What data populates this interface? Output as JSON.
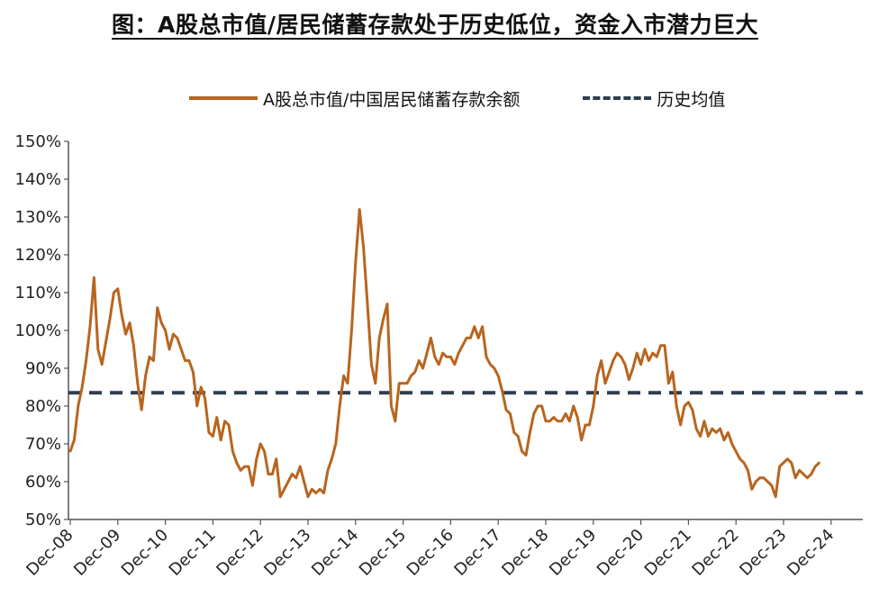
{
  "title": "图：A股总市值/居民储蓄存款处于历史低位，资金入市潜力巨大",
  "colors": {
    "series": "#b8651e",
    "mean": "#2c3e50",
    "axis": "#555555"
  },
  "chart_data": {
    "type": "line",
    "title": "图：A股总市值/居民储蓄存款处于历史低位，资金入市潜力巨大",
    "xlabel": "",
    "ylabel": "",
    "ylim": [
      50,
      150
    ],
    "y_ticks": [
      "50%",
      "60%",
      "70%",
      "80%",
      "90%",
      "100%",
      "110%",
      "120%",
      "130%",
      "140%",
      "150%"
    ],
    "x_ticks": [
      "Dec-08",
      "Dec-09",
      "Dec-10",
      "Dec-11",
      "Dec-12",
      "Dec-13",
      "Dec-14",
      "Dec-15",
      "Dec-16",
      "Dec-17",
      "Dec-18",
      "Dec-19",
      "Dec-20",
      "Dec-21",
      "Dec-22",
      "Dec-23",
      "Dec-24"
    ],
    "legend_placement": "top",
    "grid": false,
    "series": [
      {
        "name": "A股总市值/中国居民储蓄存款余额",
        "style": "solid",
        "points": [
          [
            "2008-12",
            68
          ],
          [
            "2009-01",
            71
          ],
          [
            "2009-02",
            80
          ],
          [
            "2009-03",
            85
          ],
          [
            "2009-04",
            92
          ],
          [
            "2009-05",
            101
          ],
          [
            "2009-06",
            114
          ],
          [
            "2009-07",
            95
          ],
          [
            "2009-08",
            91
          ],
          [
            "2009-09",
            97
          ],
          [
            "2009-10",
            103
          ],
          [
            "2009-11",
            110
          ],
          [
            "2009-12",
            111
          ],
          [
            "2010-01",
            104
          ],
          [
            "2010-02",
            99
          ],
          [
            "2010-03",
            102
          ],
          [
            "2010-04",
            96
          ],
          [
            "2010-05",
            86
          ],
          [
            "2010-06",
            79
          ],
          [
            "2010-07",
            88
          ],
          [
            "2010-08",
            93
          ],
          [
            "2010-09",
            92
          ],
          [
            "2010-10",
            106
          ],
          [
            "2010-11",
            102
          ],
          [
            "2010-12",
            100
          ],
          [
            "2011-01",
            95
          ],
          [
            "2011-02",
            99
          ],
          [
            "2011-03",
            98
          ],
          [
            "2011-04",
            95
          ],
          [
            "2011-05",
            92
          ],
          [
            "2011-06",
            92
          ],
          [
            "2011-07",
            89
          ],
          [
            "2011-08",
            80
          ],
          [
            "2011-09",
            85
          ],
          [
            "2011-10",
            82
          ],
          [
            "2011-11",
            73
          ],
          [
            "2011-12",
            72
          ],
          [
            "2012-01",
            77
          ],
          [
            "2012-02",
            71
          ],
          [
            "2012-03",
            76
          ],
          [
            "2012-04",
            75
          ],
          [
            "2012-05",
            68
          ],
          [
            "2012-06",
            65
          ],
          [
            "2012-07",
            63
          ],
          [
            "2012-08",
            64
          ],
          [
            "2012-09",
            64
          ],
          [
            "2012-10",
            59
          ],
          [
            "2012-11",
            66
          ],
          [
            "2012-12",
            70
          ],
          [
            "2013-01",
            68
          ],
          [
            "2013-02",
            62
          ],
          [
            "2013-03",
            62
          ],
          [
            "2013-04",
            66
          ],
          [
            "2013-05",
            56
          ],
          [
            "2013-06",
            58
          ],
          [
            "2013-07",
            60
          ],
          [
            "2013-08",
            62
          ],
          [
            "2013-09",
            61
          ],
          [
            "2013-10",
            64
          ],
          [
            "2013-11",
            60
          ],
          [
            "2013-12",
            56
          ],
          [
            "2014-01",
            58
          ],
          [
            "2014-02",
            57
          ],
          [
            "2014-03",
            58
          ],
          [
            "2014-04",
            57
          ],
          [
            "2014-05",
            63
          ],
          [
            "2014-06",
            66
          ],
          [
            "2014-07",
            70
          ],
          [
            "2014-08",
            80
          ],
          [
            "2014-09",
            88
          ],
          [
            "2014-10",
            86
          ],
          [
            "2014-11",
            100
          ],
          [
            "2014-12",
            118
          ],
          [
            "2015-01",
            132
          ],
          [
            "2015-02",
            122
          ],
          [
            "2015-03",
            107
          ],
          [
            "2015-04",
            91
          ],
          [
            "2015-05",
            86
          ],
          [
            "2015-06",
            98
          ],
          [
            "2015-07",
            103
          ],
          [
            "2015-08",
            107
          ],
          [
            "2015-09",
            80
          ],
          [
            "2015-10",
            76
          ],
          [
            "2015-11",
            86
          ],
          [
            "2015-12",
            86
          ],
          [
            "2016-01",
            86
          ],
          [
            "2016-02",
            88
          ],
          [
            "2016-03",
            89
          ],
          [
            "2016-04",
            92
          ],
          [
            "2016-05",
            90
          ],
          [
            "2016-06",
            94
          ],
          [
            "2016-07",
            98
          ],
          [
            "2016-08",
            93
          ],
          [
            "2016-09",
            91
          ],
          [
            "2016-10",
            94
          ],
          [
            "2016-11",
            93
          ],
          [
            "2016-12",
            93
          ],
          [
            "2017-01",
            91
          ],
          [
            "2017-02",
            94
          ],
          [
            "2017-03",
            96
          ],
          [
            "2017-04",
            98
          ],
          [
            "2017-05",
            98
          ],
          [
            "2017-06",
            101
          ],
          [
            "2017-07",
            98
          ],
          [
            "2017-08",
            101
          ],
          [
            "2017-09",
            93
          ],
          [
            "2017-10",
            91
          ],
          [
            "2017-11",
            90
          ],
          [
            "2017-12",
            88
          ],
          [
            "2018-01",
            84
          ],
          [
            "2018-02",
            79
          ],
          [
            "2018-03",
            78
          ],
          [
            "2018-04",
            73
          ],
          [
            "2018-05",
            72
          ],
          [
            "2018-06",
            68
          ],
          [
            "2018-07",
            67
          ],
          [
            "2018-08",
            73
          ],
          [
            "2018-09",
            78
          ],
          [
            "2018-10",
            80
          ],
          [
            "2018-11",
            80
          ],
          [
            "2018-12",
            76
          ],
          [
            "2019-01",
            76
          ],
          [
            "2019-02",
            77
          ],
          [
            "2019-03",
            76
          ],
          [
            "2019-04",
            76
          ],
          [
            "2019-05",
            78
          ],
          [
            "2019-06",
            76
          ],
          [
            "2019-07",
            80
          ],
          [
            "2019-08",
            77
          ],
          [
            "2019-09",
            71
          ],
          [
            "2019-10",
            75
          ],
          [
            "2019-11",
            75
          ],
          [
            "2019-12",
            80
          ],
          [
            "2020-01",
            88
          ],
          [
            "2020-02",
            92
          ],
          [
            "2020-03",
            86
          ],
          [
            "2020-04",
            89
          ],
          [
            "2020-05",
            92
          ],
          [
            "2020-06",
            94
          ],
          [
            "2020-07",
            93
          ],
          [
            "2020-08",
            91
          ],
          [
            "2020-09",
            87
          ],
          [
            "2020-10",
            90
          ],
          [
            "2020-11",
            94
          ],
          [
            "2020-12",
            91
          ],
          [
            "2021-01",
            95
          ],
          [
            "2021-02",
            92
          ],
          [
            "2021-03",
            94
          ],
          [
            "2021-04",
            93
          ],
          [
            "2021-05",
            96
          ],
          [
            "2021-06",
            96
          ],
          [
            "2021-07",
            86
          ],
          [
            "2021-08",
            89
          ],
          [
            "2021-09",
            80
          ],
          [
            "2021-10",
            75
          ],
          [
            "2021-11",
            80
          ],
          [
            "2021-12",
            81
          ],
          [
            "2022-01",
            79
          ],
          [
            "2022-02",
            74
          ],
          [
            "2022-03",
            72
          ],
          [
            "2022-04",
            76
          ],
          [
            "2022-05",
            72
          ],
          [
            "2022-06",
            74
          ],
          [
            "2022-07",
            73
          ],
          [
            "2022-08",
            74
          ],
          [
            "2022-09",
            71
          ],
          [
            "2022-10",
            73
          ],
          [
            "2022-11",
            70
          ],
          [
            "2022-12",
            68
          ],
          [
            "2023-01",
            66
          ],
          [
            "2023-02",
            65
          ],
          [
            "2023-03",
            63
          ],
          [
            "2023-04",
            58
          ],
          [
            "2023-05",
            60
          ],
          [
            "2023-06",
            61
          ],
          [
            "2023-07",
            61
          ],
          [
            "2023-08",
            60
          ],
          [
            "2023-09",
            59
          ],
          [
            "2023-10",
            56
          ],
          [
            "2023-11",
            64
          ],
          [
            "2023-12",
            65
          ],
          [
            "2024-01",
            66
          ],
          [
            "2024-02",
            65
          ],
          [
            "2024-03",
            61
          ],
          [
            "2024-04",
            63
          ],
          [
            "2024-05",
            62
          ],
          [
            "2024-06",
            61
          ],
          [
            "2024-07",
            62
          ],
          [
            "2024-08",
            64
          ],
          [
            "2024-09",
            65
          ]
        ]
      },
      {
        "name": "历史均值",
        "style": "dashed",
        "value": 83.5
      }
    ]
  }
}
